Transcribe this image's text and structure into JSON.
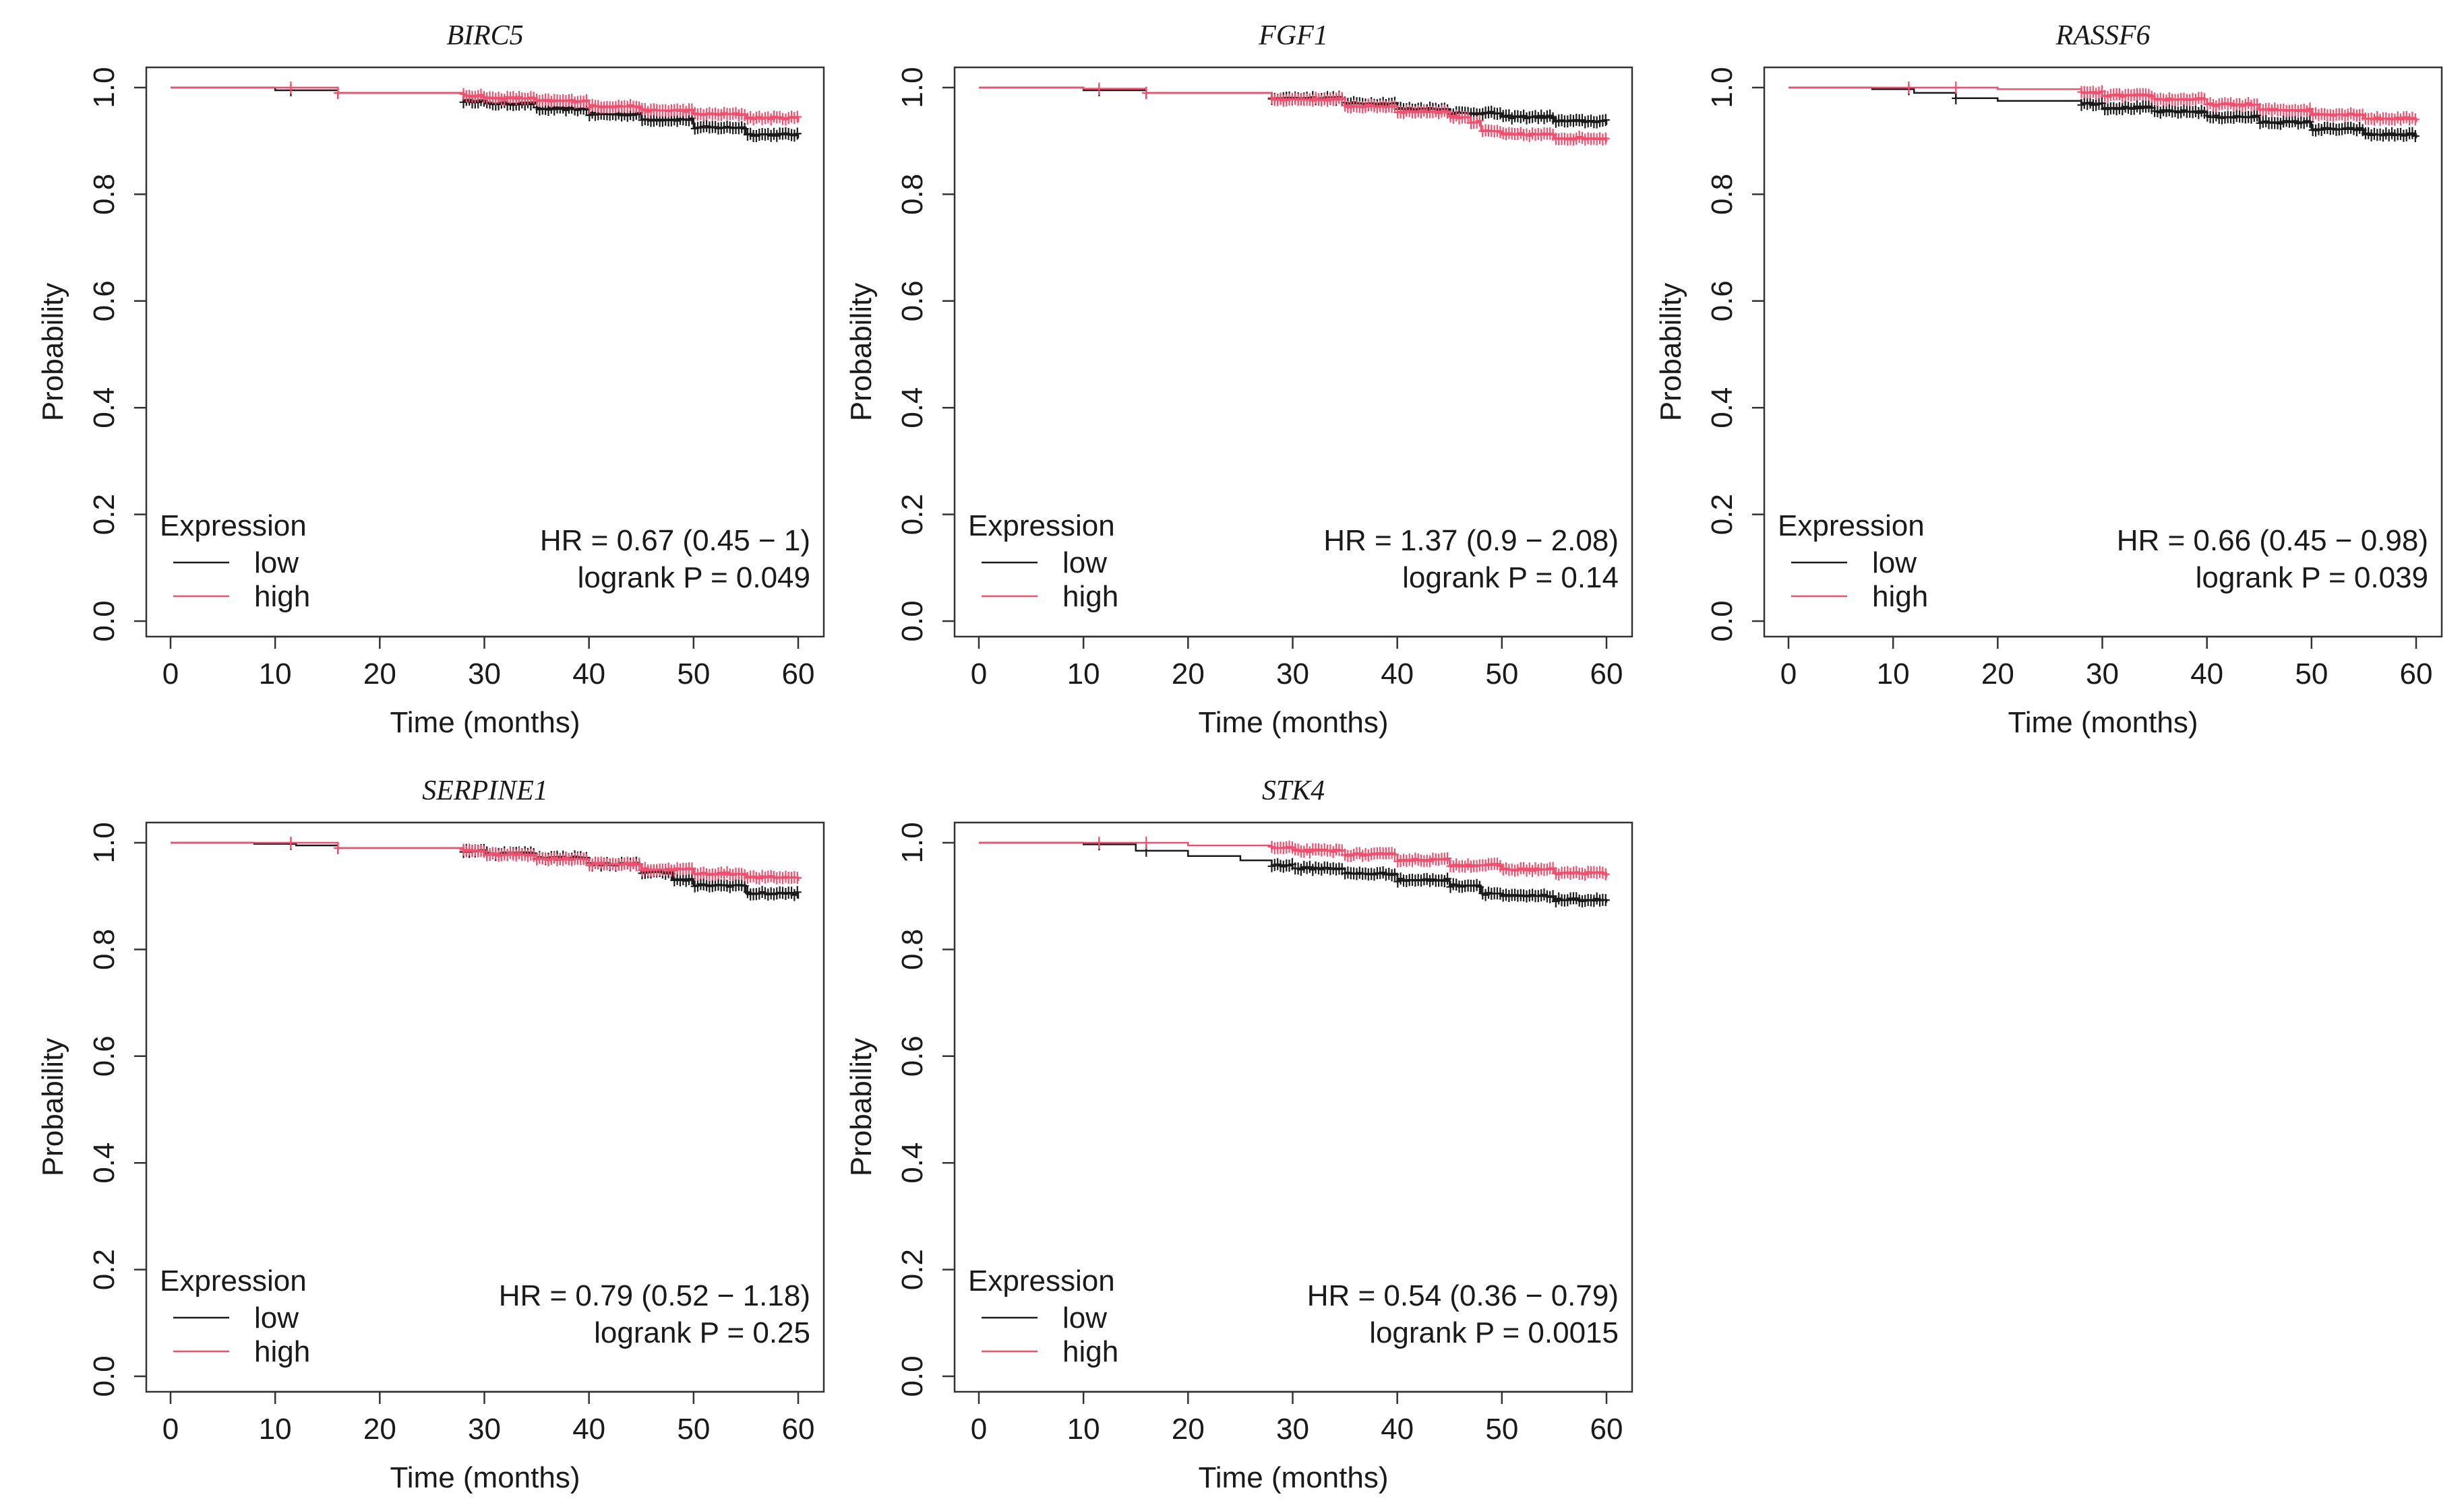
{
  "figure": {
    "x_axis_label": "Time (months)",
    "y_axis_label": "Probability",
    "x_ticks": [
      0,
      10,
      20,
      30,
      40,
      50,
      60
    ],
    "y_ticks": [
      "0.0",
      "0.2",
      "0.4",
      "0.6",
      "0.8",
      "1.0"
    ],
    "legend": {
      "title": "Expression",
      "entries": [
        "low",
        "high"
      ]
    },
    "colors": {
      "low": "#1a1a1a",
      "high": "#f0506e",
      "axis": "#333333"
    }
  },
  "chart_data": [
    {
      "type": "line",
      "title": "BIRC5",
      "xlabel": "Time (months)",
      "ylabel": "Probability",
      "xlim": [
        0,
        60
      ],
      "ylim": [
        0,
        1
      ],
      "hr_text": "HR = 0.67 (0.45 − 1)",
      "p_text": "logrank P = 0.049",
      "series": [
        {
          "name": "low",
          "color": "#1a1a1a",
          "points": [
            [
              0,
              1
            ],
            [
              5,
              1
            ],
            [
              10,
              0.995
            ],
            [
              16,
              0.99
            ],
            [
              28,
              0.975
            ],
            [
              30,
              0.97
            ],
            [
              35,
              0.96
            ],
            [
              40,
              0.95
            ],
            [
              45,
              0.94
            ],
            [
              50,
              0.925
            ],
            [
              55,
              0.912
            ],
            [
              60,
              0.905
            ]
          ],
          "censor_start": 28
        },
        {
          "name": "high",
          "color": "#f0506e",
          "points": [
            [
              0,
              1
            ],
            [
              10,
              1
            ],
            [
              16,
              0.99
            ],
            [
              28,
              0.985
            ],
            [
              30,
              0.98
            ],
            [
              35,
              0.975
            ],
            [
              40,
              0.965
            ],
            [
              45,
              0.957
            ],
            [
              50,
              0.95
            ],
            [
              55,
              0.943
            ],
            [
              60,
              0.935
            ]
          ],
          "censor_start": 28
        }
      ]
    },
    {
      "type": "line",
      "title": "FGF1",
      "xlabel": "Time (months)",
      "ylabel": "Probability",
      "xlim": [
        0,
        60
      ],
      "ylim": [
        0,
        1
      ],
      "hr_text": "HR = 1.37 (0.9 − 2.08)",
      "p_text": "logrank P = 0.14",
      "series": [
        {
          "name": "low",
          "color": "#1a1a1a",
          "points": [
            [
              0,
              1
            ],
            [
              10,
              0.995
            ],
            [
              16,
              0.99
            ],
            [
              28,
              0.98
            ],
            [
              35,
              0.97
            ],
            [
              40,
              0.96
            ],
            [
              45,
              0.952
            ],
            [
              50,
              0.945
            ],
            [
              55,
              0.937
            ],
            [
              60,
              0.93
            ]
          ],
          "censor_start": 28
        },
        {
          "name": "high",
          "color": "#f0506e",
          "points": [
            [
              0,
              1
            ],
            [
              10,
              0.998
            ],
            [
              16,
              0.99
            ],
            [
              28,
              0.978
            ],
            [
              35,
              0.965
            ],
            [
              40,
              0.955
            ],
            [
              45,
              0.945
            ],
            [
              47,
              0.935
            ],
            [
              48,
              0.918
            ],
            [
              50,
              0.912
            ],
            [
              55,
              0.905
            ],
            [
              60,
              0.898
            ]
          ],
          "censor_start": 28
        }
      ]
    },
    {
      "type": "line",
      "title": "RASSF6",
      "xlabel": "Time (months)",
      "ylabel": "Probability",
      "xlim": [
        0,
        60
      ],
      "ylim": [
        0,
        1
      ],
      "hr_text": "HR = 0.66 (0.45 − 0.98)",
      "p_text": "logrank P = 0.039",
      "series": [
        {
          "name": "low",
          "color": "#1a1a1a",
          "points": [
            [
              0,
              1
            ],
            [
              8,
              0.997
            ],
            [
              12,
              0.99
            ],
            [
              16,
              0.98
            ],
            [
              20,
              0.975
            ],
            [
              28,
              0.97
            ],
            [
              30,
              0.962
            ],
            [
              35,
              0.955
            ],
            [
              40,
              0.945
            ],
            [
              45,
              0.935
            ],
            [
              50,
              0.922
            ],
            [
              55,
              0.912
            ],
            [
              60,
              0.905
            ]
          ],
          "censor_start": 28
        },
        {
          "name": "high",
          "color": "#f0506e",
          "points": [
            [
              0,
              1
            ],
            [
              12,
              1
            ],
            [
              20,
              0.997
            ],
            [
              28,
              0.99
            ],
            [
              30,
              0.985
            ],
            [
              35,
              0.978
            ],
            [
              40,
              0.968
            ],
            [
              45,
              0.958
            ],
            [
              50,
              0.95
            ],
            [
              55,
              0.942
            ],
            [
              60,
              0.935
            ]
          ],
          "censor_start": 28
        }
      ]
    },
    {
      "type": "line",
      "title": "SERPINE1",
      "xlabel": "Time (months)",
      "ylabel": "Probability",
      "xlim": [
        0,
        60
      ],
      "ylim": [
        0,
        1
      ],
      "hr_text": "HR = 0.79 (0.52 − 1.18)",
      "p_text": "logrank P = 0.25",
      "series": [
        {
          "name": "low",
          "color": "#1a1a1a",
          "points": [
            [
              0,
              1
            ],
            [
              8,
              0.998
            ],
            [
              12,
              0.995
            ],
            [
              16,
              0.99
            ],
            [
              28,
              0.985
            ],
            [
              30,
              0.98
            ],
            [
              35,
              0.972
            ],
            [
              40,
              0.96
            ],
            [
              45,
              0.945
            ],
            [
              48,
              0.93
            ],
            [
              50,
              0.92
            ],
            [
              55,
              0.905
            ],
            [
              60,
              0.895
            ]
          ],
          "censor_start": 28
        },
        {
          "name": "high",
          "color": "#f0506e",
          "points": [
            [
              0,
              1
            ],
            [
              10,
              1
            ],
            [
              16,
              0.99
            ],
            [
              28,
              0.985
            ],
            [
              30,
              0.978
            ],
            [
              35,
              0.97
            ],
            [
              40,
              0.96
            ],
            [
              45,
              0.95
            ],
            [
              50,
              0.942
            ],
            [
              55,
              0.935
            ],
            [
              60,
              0.928
            ]
          ],
          "censor_start": 28
        }
      ]
    },
    {
      "type": "line",
      "title": "STK4",
      "xlabel": "Time (months)",
      "ylabel": "Probability",
      "xlim": [
        0,
        60
      ],
      "ylim": [
        0,
        1
      ],
      "hr_text": "HR = 0.54 (0.36 − 0.79)",
      "p_text": "logrank P = 0.0015",
      "series": [
        {
          "name": "low",
          "color": "#1a1a1a",
          "points": [
            [
              0,
              1
            ],
            [
              10,
              0.997
            ],
            [
              15,
              0.985
            ],
            [
              20,
              0.975
            ],
            [
              25,
              0.967
            ],
            [
              28,
              0.958
            ],
            [
              30,
              0.952
            ],
            [
              35,
              0.942
            ],
            [
              40,
              0.93
            ],
            [
              45,
              0.92
            ],
            [
              48,
              0.905
            ],
            [
              50,
              0.9
            ],
            [
              55,
              0.893
            ],
            [
              60,
              0.888
            ]
          ],
          "censor_start": 28
        },
        {
          "name": "high",
          "color": "#f0506e",
          "points": [
            [
              0,
              1
            ],
            [
              10,
              1
            ],
            [
              20,
              0.995
            ],
            [
              28,
              0.99
            ],
            [
              30,
              0.985
            ],
            [
              35,
              0.978
            ],
            [
              40,
              0.968
            ],
            [
              45,
              0.958
            ],
            [
              50,
              0.95
            ],
            [
              55,
              0.943
            ],
            [
              60,
              0.935
            ]
          ],
          "censor_start": 28
        }
      ]
    }
  ]
}
